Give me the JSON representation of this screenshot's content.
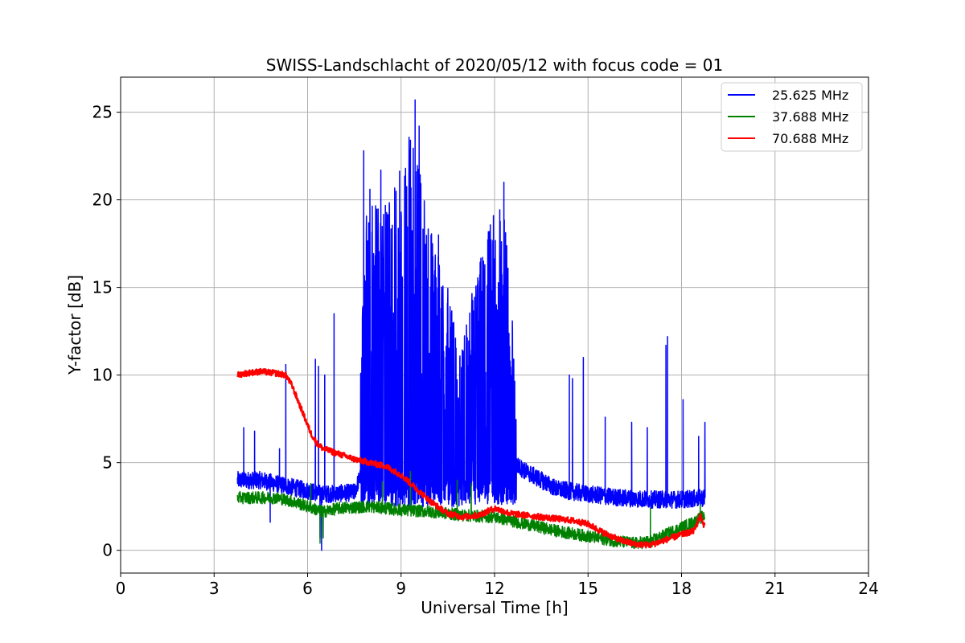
{
  "chart_data": {
    "type": "line",
    "title": "SWISS-Landschlacht of 2020/05/12 with focus code = 01",
    "xlabel": "Universal Time [h]",
    "ylabel": "Y-factor [dB]",
    "xlim": [
      0,
      24
    ],
    "ylim": [
      -1.3,
      27
    ],
    "xticks": [
      0,
      3,
      6,
      9,
      12,
      15,
      18,
      21,
      24
    ],
    "yticks": [
      0,
      5,
      10,
      15,
      20,
      25
    ],
    "grid": true,
    "legend_position": "top-right",
    "series": [
      {
        "name": "25.625 MHz",
        "color": "#0000ff",
        "base_x": [
          3.75,
          4.5,
          5.5,
          6.5,
          7.5,
          7.75,
          8.0,
          8.5,
          9.0,
          9.3,
          9.5,
          10.0,
          10.5,
          11.0,
          11.5,
          12.0,
          12.3,
          12.6,
          13.0,
          14.0,
          15.0,
          16.0,
          17.0,
          18.0,
          18.75
        ],
        "base_y": [
          4.0,
          4.0,
          3.6,
          3.2,
          3.3,
          4.5,
          6.0,
          6.0,
          6.0,
          6.5,
          6.0,
          5.5,
          5.0,
          4.5,
          5.5,
          6.0,
          6.0,
          5.0,
          4.5,
          3.5,
          3.2,
          3.0,
          2.9,
          2.9,
          3.0
        ],
        "envelope_x": [
          7.7,
          7.85,
          8.0,
          8.5,
          9.0,
          9.3,
          9.6,
          10.0,
          10.5,
          10.8,
          11.0,
          11.3,
          11.7,
          12.0,
          12.3,
          12.5,
          12.7
        ],
        "envelope_y": [
          11.0,
          20.0,
          20.0,
          20.0,
          22.0,
          24.0,
          22.0,
          18.0,
          15.0,
          12.0,
          12.0,
          15.0,
          18.0,
          19.5,
          19.5,
          16.0,
          8.0
        ],
        "spikes_x": [
          3.95,
          4.3,
          5.1,
          5.3,
          6.25,
          6.35,
          6.55,
          6.85,
          7.8,
          8.0,
          8.35,
          9.3,
          9.45,
          9.58,
          10.2,
          11.3,
          12.3,
          14.4,
          14.5,
          14.85,
          15.55,
          16.4,
          16.9,
          17.5,
          17.55,
          18.05,
          18.55,
          18.75,
          11.0,
          12.5
        ],
        "spikes_y": [
          7.0,
          6.8,
          5.8,
          10.6,
          10.9,
          10.5,
          10.0,
          13.5,
          22.8,
          20.6,
          21.7,
          23.4,
          25.7,
          24.2,
          18.0,
          10.8,
          21.0,
          10.0,
          9.8,
          11.0,
          7.6,
          7.3,
          7.0,
          11.7,
          12.2,
          8.6,
          6.5,
          7.3,
          10.6,
          10.8
        ],
        "dips_x": [
          4.8,
          6.4,
          6.45
        ],
        "dips_y": [
          1.6,
          0.7,
          0.0
        ]
      },
      {
        "name": "37.688 MHz",
        "color": "#008000",
        "base_x": [
          3.75,
          4.5,
          5.0,
          5.5,
          6.0,
          6.5,
          7.0,
          8.0,
          9.0,
          10.0,
          11.0,
          12.0,
          13.0,
          14.0,
          15.0,
          16.0,
          16.5,
          17.0,
          17.5,
          18.0,
          18.4,
          18.75
        ],
        "base_y": [
          3.0,
          3.0,
          3.0,
          2.8,
          2.5,
          2.2,
          2.4,
          2.5,
          2.3,
          2.2,
          2.0,
          1.9,
          1.5,
          1.1,
          0.8,
          0.5,
          0.4,
          0.5,
          0.9,
          1.3,
          1.6,
          2.0
        ],
        "spikes_x": [
          6.1,
          8.4,
          9.3,
          10.8,
          11.25,
          17.0,
          18.6
        ],
        "spikes_y": [
          3.8,
          3.9,
          4.5,
          4.0,
          3.8,
          2.4,
          2.6
        ],
        "dips_x": [
          6.4,
          6.5
        ],
        "dips_y": [
          0.4,
          0.7
        ]
      },
      {
        "name": "70.688 MHz",
        "color": "#ff0000",
        "x": [
          3.75,
          4.0,
          4.5,
          5.0,
          5.3,
          5.5,
          5.7,
          5.9,
          6.1,
          6.3,
          6.5,
          7.0,
          7.5,
          8.0,
          8.5,
          9.0,
          9.5,
          10.0,
          10.5,
          11.0,
          11.5,
          12.0,
          12.5,
          13.0,
          13.5,
          14.0,
          14.5,
          15.0,
          15.5,
          16.0,
          16.5,
          17.0,
          17.5,
          18.0,
          18.4,
          18.6,
          18.75
        ],
        "y": [
          10.0,
          10.1,
          10.2,
          10.1,
          10.0,
          9.4,
          8.5,
          7.6,
          6.7,
          6.1,
          5.8,
          5.5,
          5.2,
          5.0,
          4.8,
          4.3,
          3.5,
          2.7,
          2.1,
          1.9,
          2.0,
          2.4,
          2.1,
          2.0,
          1.9,
          1.8,
          1.7,
          1.5,
          1.0,
          0.6,
          0.35,
          0.3,
          0.6,
          0.9,
          1.1,
          2.0,
          1.3
        ]
      }
    ]
  }
}
